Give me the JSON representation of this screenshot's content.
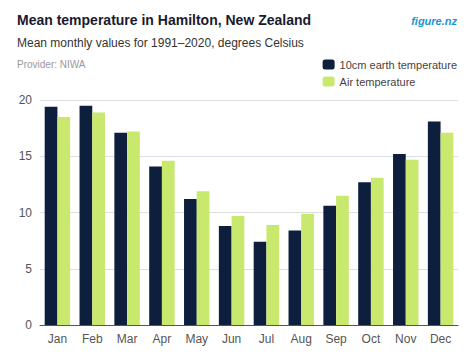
{
  "chart_data": {
    "type": "bar",
    "title": "Mean temperature in Hamilton, New Zealand",
    "subtitle": "Mean monthly values for 1991–2020, degrees Celsius",
    "annotations": [
      "Provider: NIWA",
      "figure.nz"
    ],
    "categories": [
      "Jan",
      "Feb",
      "Mar",
      "Apr",
      "May",
      "Jun",
      "Jul",
      "Aug",
      "Sep",
      "Oct",
      "Nov",
      "Dec"
    ],
    "series": [
      {
        "name": "10cm earth temperature",
        "color": "#0d1f3c",
        "values": [
          19.4,
          19.5,
          17.1,
          14.1,
          11.2,
          8.8,
          7.4,
          8.4,
          10.6,
          12.7,
          15.2,
          18.1
        ]
      },
      {
        "name": "Air temperature",
        "color": "#c8e86e",
        "values": [
          18.5,
          18.9,
          17.2,
          14.6,
          11.9,
          9.7,
          8.9,
          9.9,
          11.5,
          13.1,
          14.7,
          17.1
        ]
      }
    ],
    "ylim": [
      0,
      20
    ],
    "yticks": [
      0,
      5,
      10,
      15,
      20
    ],
    "grid": true,
    "legend": "upper right"
  }
}
